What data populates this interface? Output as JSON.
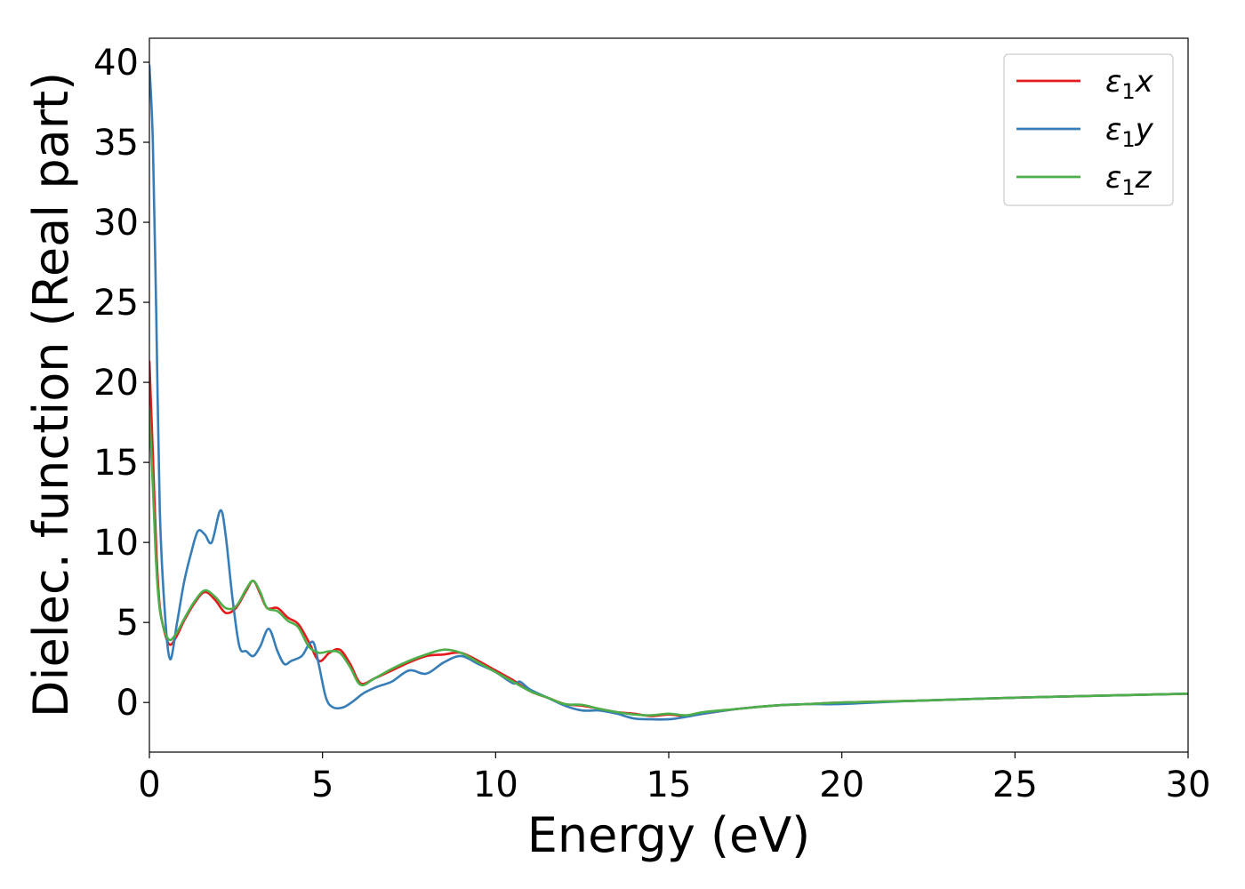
{
  "chart_data": {
    "type": "line",
    "title": "",
    "xlabel": "Energy (eV)",
    "ylabel": "Dielec. function (Real part)",
    "xlim": [
      0,
      30
    ],
    "ylim": [
      -3.1,
      41.5
    ],
    "xticks": [
      0,
      5,
      10,
      15,
      20,
      25,
      30
    ],
    "yticks": [
      0,
      5,
      10,
      15,
      20,
      25,
      30,
      35,
      40
    ],
    "grid": false,
    "legend": "top-right",
    "series": [
      {
        "name": "ε₁x",
        "legend_base": "ε",
        "legend_sub": "1",
        "legend_suffix": "x",
        "color": "#e41a1c",
        "x": [
          0,
          0.1,
          0.2,
          0.3,
          0.45,
          0.6,
          0.8,
          1.0,
          1.3,
          1.6,
          1.9,
          2.2,
          2.5,
          2.8,
          3.0,
          3.2,
          3.4,
          3.7,
          4.0,
          4.3,
          4.6,
          4.9,
          5.2,
          5.5,
          5.8,
          6.1,
          6.5,
          7.0,
          7.5,
          8.0,
          8.5,
          9.0,
          9.5,
          10.0,
          10.5,
          11.0,
          11.5,
          12.0,
          12.5,
          13.0,
          13.5,
          14.0,
          14.5,
          15.0,
          15.5,
          16.0,
          17.0,
          18.0,
          19.0,
          20.0,
          22.0,
          25.0,
          28.0,
          30.0
        ],
        "y": [
          21.3,
          15.5,
          9.5,
          6.0,
          4.3,
          3.6,
          4.2,
          5.1,
          6.2,
          6.9,
          6.4,
          5.6,
          5.9,
          7.0,
          7.6,
          6.8,
          5.9,
          5.9,
          5.3,
          4.9,
          3.8,
          2.6,
          3.1,
          3.3,
          2.4,
          1.2,
          1.5,
          2.0,
          2.5,
          2.9,
          3.0,
          3.1,
          2.6,
          2.0,
          1.4,
          0.7,
          0.3,
          -0.1,
          -0.2,
          -0.4,
          -0.6,
          -0.7,
          -0.85,
          -0.75,
          -0.85,
          -0.7,
          -0.4,
          -0.2,
          -0.1,
          0.0,
          0.1,
          0.3,
          0.45,
          0.55
        ]
      },
      {
        "name": "ε₁y",
        "legend_base": "ε",
        "legend_sub": "1",
        "legend_suffix": "y",
        "color": "#377eb8",
        "x": [
          0,
          0.1,
          0.2,
          0.3,
          0.45,
          0.6,
          0.8,
          1.0,
          1.2,
          1.4,
          1.6,
          1.8,
          2.05,
          2.2,
          2.4,
          2.6,
          2.8,
          3.0,
          3.2,
          3.45,
          3.7,
          3.9,
          4.1,
          4.4,
          4.6,
          4.75,
          4.9,
          5.1,
          5.3,
          5.6,
          5.9,
          6.2,
          6.6,
          7.0,
          7.5,
          8.0,
          8.5,
          9.0,
          9.5,
          10.0,
          10.5,
          10.7,
          11.0,
          11.5,
          12.0,
          12.5,
          13.0,
          13.5,
          14.0,
          14.5,
          15.0,
          15.5,
          16.0,
          17.0,
          18.0,
          19.0,
          20.0,
          22.0,
          25.0,
          28.0,
          30.0
        ],
        "y": [
          39.8,
          35.0,
          24.0,
          12.0,
          5.5,
          2.7,
          5.0,
          7.5,
          9.3,
          10.7,
          10.5,
          10.0,
          12.0,
          10.5,
          6.5,
          3.5,
          3.2,
          2.9,
          3.5,
          4.6,
          3.2,
          2.4,
          2.6,
          2.9,
          3.6,
          3.7,
          2.3,
          0.3,
          -0.3,
          -0.3,
          0.1,
          0.6,
          1.0,
          1.3,
          2.0,
          1.8,
          2.5,
          2.9,
          2.4,
          1.9,
          1.2,
          1.3,
          0.8,
          0.3,
          -0.2,
          -0.5,
          -0.5,
          -0.7,
          -1.0,
          -1.05,
          -1.05,
          -0.9,
          -0.7,
          -0.4,
          -0.2,
          -0.1,
          -0.1,
          0.1,
          0.3,
          0.45,
          0.55
        ]
      },
      {
        "name": "ε₁z",
        "legend_base": "ε",
        "legend_sub": "1",
        "legend_suffix": "z",
        "color": "#4daf4a",
        "x": [
          0,
          0.1,
          0.2,
          0.3,
          0.45,
          0.6,
          0.8,
          1.0,
          1.3,
          1.6,
          1.9,
          2.2,
          2.5,
          2.8,
          3.0,
          3.2,
          3.4,
          3.7,
          4.0,
          4.3,
          4.6,
          4.9,
          5.2,
          5.5,
          5.8,
          6.1,
          6.5,
          7.0,
          7.5,
          8.0,
          8.5,
          9.0,
          9.5,
          10.0,
          10.5,
          11.0,
          11.5,
          12.0,
          12.5,
          13.0,
          13.5,
          14.0,
          14.5,
          15.0,
          15.5,
          16.0,
          17.0,
          18.0,
          19.0,
          20.0,
          22.0,
          25.0,
          28.0,
          30.0
        ],
        "y": [
          18.2,
          13.5,
          8.5,
          5.8,
          4.4,
          3.9,
          4.4,
          5.2,
          6.3,
          7.0,
          6.6,
          5.9,
          6.0,
          7.1,
          7.6,
          6.9,
          5.9,
          5.7,
          5.1,
          4.7,
          3.5,
          3.1,
          3.2,
          3.1,
          2.2,
          1.1,
          1.5,
          2.1,
          2.6,
          3.0,
          3.3,
          3.1,
          2.5,
          1.9,
          1.3,
          0.7,
          0.3,
          -0.1,
          -0.15,
          -0.4,
          -0.6,
          -0.75,
          -0.8,
          -0.7,
          -0.8,
          -0.6,
          -0.4,
          -0.2,
          -0.1,
          0.0,
          0.1,
          0.3,
          0.45,
          0.55
        ]
      }
    ]
  }
}
